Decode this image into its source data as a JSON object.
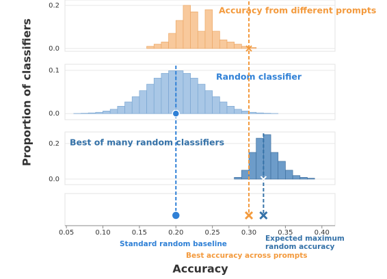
{
  "xlabel": "Accuracy",
  "ylabel": "Proportion of classifiers",
  "xlim": [
    0.048,
    0.418
  ],
  "xticks": [
    0.05,
    {
      "value": 0.1,
      "label": "0.10"
    },
    0.15,
    {
      "value": 0.2,
      "label": "0.20"
    },
    0.25,
    {
      "value": 0.3,
      "label": "0.30"
    },
    0.35,
    {
      "value": 0.4,
      "label": "0.40"
    }
  ],
  "chart_data": [
    {
      "type": "histogram",
      "title": "Accuracy from different prompts",
      "color": "#f8c99c",
      "bins": [
        0.16,
        0.17,
        0.18,
        0.19,
        0.2,
        0.21,
        0.22,
        0.23,
        0.24,
        0.25,
        0.26,
        0.27,
        0.28,
        0.29,
        0.3,
        0.31
      ],
      "counts": [
        0.01,
        0.02,
        0.03,
        0.07,
        0.13,
        0.2,
        0.17,
        0.08,
        0.18,
        0.08,
        0.04,
        0.03,
        0.02,
        0.01,
        0.005
      ],
      "ylim": [
        -0.013,
        0.225
      ],
      "yticks": [
        {
          "value": 0,
          "label": "0.0"
        },
        0.2
      ],
      "reference": {
        "label": "Best accuracy across prompts",
        "value": 0.3,
        "color": "#f39a3d"
      }
    },
    {
      "type": "histogram",
      "title": "Random classifier",
      "color": "#a9c7e6",
      "bins": [
        0.06,
        0.07,
        0.08,
        0.09,
        0.1,
        0.11,
        0.12,
        0.13,
        0.14,
        0.15,
        0.16,
        0.17,
        0.18,
        0.19,
        0.2,
        0.21,
        0.22,
        0.23,
        0.24,
        0.25,
        0.26,
        0.27,
        0.28,
        0.29,
        0.3,
        0.31,
        0.32,
        0.33,
        0.34
      ],
      "counts": [
        0.0003,
        0.0008,
        0.0016,
        0.003,
        0.006,
        0.01,
        0.017,
        0.027,
        0.039,
        0.053,
        0.068,
        0.082,
        0.093,
        0.099,
        0.099,
        0.093,
        0.082,
        0.068,
        0.053,
        0.039,
        0.027,
        0.017,
        0.01,
        0.006,
        0.003,
        0.0016,
        0.0008,
        0.0003
      ],
      "ylim": [
        -0.014,
        0.114
      ],
      "yticks": [
        {
          "value": 0,
          "label": "0.0"
        },
        0.1
      ],
      "reference": {
        "label": "Standard random baseline",
        "value": 0.2,
        "color": "#2f80d6"
      }
    },
    {
      "type": "histogram",
      "title": "Best of many random classifiers",
      "color": "#6d9cc9",
      "bins": [
        0.28,
        0.29,
        0.3,
        0.31,
        0.32,
        0.33,
        0.34,
        0.35,
        0.36,
        0.37,
        0.38,
        0.39
      ],
      "counts": [
        0.01,
        0.05,
        0.15,
        0.23,
        0.25,
        0.15,
        0.1,
        0.05,
        0.02,
        0.01,
        0.005
      ],
      "ylim": [
        -0.031,
        0.265
      ],
      "yticks": [
        {
          "value": 0,
          "label": "0.0"
        },
        0.2
      ],
      "reference": {
        "label": [
          "Expected maximum",
          "random accuracy"
        ],
        "value": 0.32,
        "color": "#3572a8"
      }
    }
  ]
}
